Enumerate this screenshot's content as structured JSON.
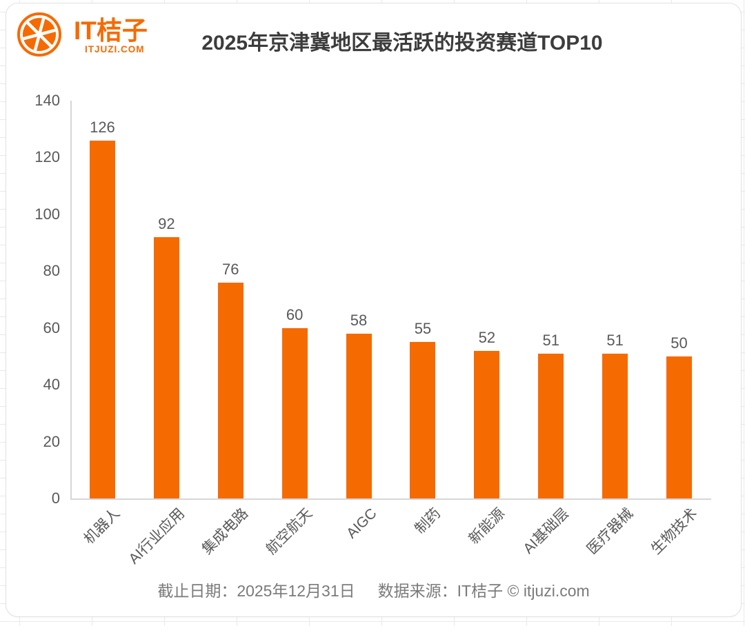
{
  "brand": {
    "name": "IT桔子",
    "domain": "ITJUZI.COM",
    "color": "#F66A02"
  },
  "title": "2025年京津冀地区最活跃的投资赛道TOP10",
  "footer": {
    "date_label": "截止日期：2025年12月31日",
    "source_label": "数据来源：IT桔子 © itjuzi.com"
  },
  "chart_data": {
    "type": "bar",
    "title": "2025年京津冀地区最活跃的投资赛道TOP10",
    "categories": [
      "机器人",
      "AI行业应用",
      "集成电路",
      "航空航天",
      "AIGC",
      "制药",
      "新能源",
      "AI基础层",
      "医疗器械",
      "生物技术"
    ],
    "values": [
      126,
      92,
      76,
      60,
      58,
      55,
      52,
      51,
      51,
      50
    ],
    "bar_color": "#F66A02",
    "value_label_color": "#595959",
    "xlabel": "",
    "ylabel": "",
    "ylim": [
      0,
      140
    ],
    "yticks": [
      0,
      20,
      40,
      60,
      80,
      100,
      120,
      140
    ],
    "grid": false,
    "legend": false
  }
}
